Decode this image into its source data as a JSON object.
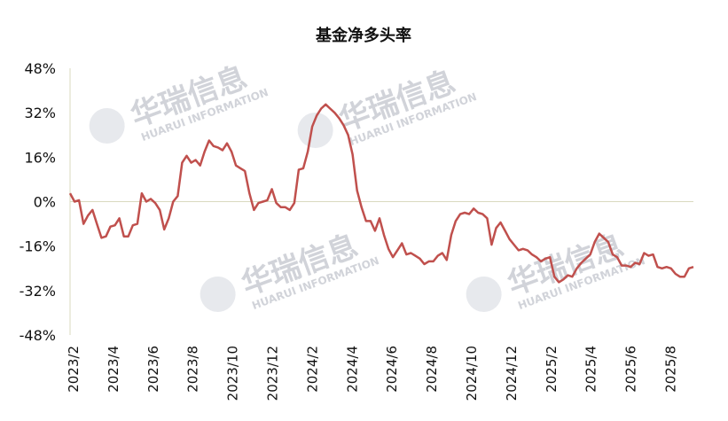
{
  "watermark": {
    "cn": "华瑞信息",
    "en": "HUARUI INFORMATION"
  },
  "chart_data": {
    "type": "line",
    "title": "基金净多头率",
    "xlabel": "",
    "ylabel": "",
    "ylim": [
      -48,
      48
    ],
    "y_ticks": [
      "48%",
      "32%",
      "16%",
      "0%",
      "-16%",
      "-32%",
      "-48%"
    ],
    "x_ticks": [
      "2023/2",
      "2023/4",
      "2023/6",
      "2023/8",
      "2023/10",
      "2023/12",
      "2024/2",
      "2024/4",
      "2024/6",
      "2024/8",
      "2024/10",
      "2024/12",
      "2025/2",
      "2025/4",
      "2025/6",
      "2025/8"
    ],
    "grid": false,
    "legend": "none",
    "line_color": "#c0504d",
    "series": [
      {
        "values": [
          3,
          0,
          0.5,
          -8,
          -5,
          -3,
          -8,
          -13,
          -12.5,
          -9,
          -8.5,
          -6,
          -12.5,
          -12.5,
          -8.5,
          -8,
          3,
          0,
          1,
          -0.5,
          -3,
          -10,
          -6,
          0,
          2,
          14,
          16.5,
          14,
          15,
          13,
          18,
          22,
          20,
          19.5,
          18.5,
          21,
          18,
          13,
          12,
          11,
          3,
          -3,
          -0.5,
          0,
          0.5,
          4.5,
          -0.5,
          -2,
          -2,
          -3,
          -0.5,
          11.5,
          12,
          18,
          27,
          31,
          33.5,
          35,
          33.5,
          32,
          30,
          27.5,
          24,
          17,
          4,
          -2,
          -7,
          -7,
          -10.5,
          -6,
          -12,
          -17,
          -20,
          -17.5,
          -15,
          -19,
          -18.5,
          -19.5,
          -20.5,
          -22.5,
          -21.5,
          -21.5,
          -19.5,
          -18.5,
          -21,
          -12,
          -7,
          -4.5,
          -4,
          -4.5,
          -2.5,
          -4,
          -4.5,
          -6,
          -15.5,
          -9.5,
          -7.5,
          -10.5,
          -13.5,
          -15.5,
          -17.5,
          -17,
          -17.5,
          -19,
          -20,
          -21.5,
          -20.5,
          -20,
          -27,
          -29,
          -28,
          -26.5,
          -27,
          -24,
          -22,
          -20.5,
          -19,
          -14.5,
          -11.5,
          -13,
          -14.5,
          -19,
          -20,
          -23,
          -23,
          -23.5,
          -22,
          -22.5,
          -18.5,
          -19.5,
          -19,
          -23.5,
          -24,
          -23.5,
          -24,
          -26,
          -27,
          -27,
          -24,
          -23.5
        ]
      }
    ]
  }
}
